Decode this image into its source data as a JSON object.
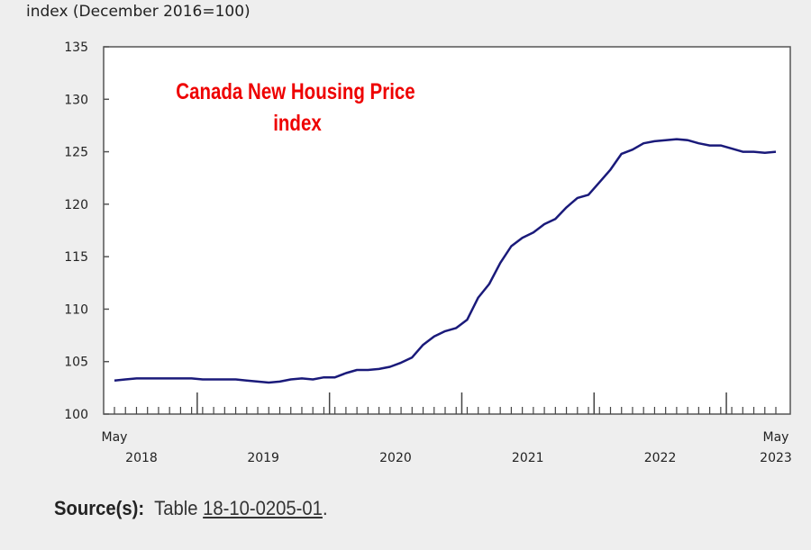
{
  "chart_data": {
    "type": "line",
    "title": "Canada New Housing Price index",
    "title_lines": [
      "Canada New Housing Price",
      "index"
    ],
    "ylabel": "index (December 2016=100)",
    "xlabel": "",
    "ylim": [
      100,
      135
    ],
    "yticks": [
      100,
      105,
      110,
      115,
      120,
      125,
      130,
      135
    ],
    "x_start": "May 2018",
    "x_end": "May 2023",
    "x_tick_labels": {
      "start_month": "May",
      "end_month": "May",
      "years": [
        "2018",
        "2019",
        "2020",
        "2021",
        "2022",
        "2023"
      ]
    },
    "first_month_index": 4,
    "grid": false,
    "series": [
      {
        "name": "Canada New Housing Price index",
        "color": "#1a1a7a",
        "values": [
          103.2,
          103.3,
          103.4,
          103.4,
          103.4,
          103.4,
          103.4,
          103.4,
          103.3,
          103.3,
          103.3,
          103.3,
          103.2,
          103.1,
          103.0,
          103.1,
          103.3,
          103.4,
          103.3,
          103.5,
          103.5,
          103.9,
          104.2,
          104.2,
          104.3,
          104.5,
          104.9,
          105.4,
          106.6,
          107.4,
          107.9,
          108.2,
          109.0,
          111.1,
          112.4,
          114.4,
          116.0,
          116.8,
          117.3,
          118.1,
          118.6,
          119.7,
          120.6,
          120.9,
          122.1,
          123.3,
          124.8,
          125.2,
          125.8,
          126.0,
          126.1,
          126.2,
          126.1,
          125.8,
          125.6,
          125.6,
          125.3,
          125.0,
          125.0,
          124.9,
          125.0
        ]
      }
    ],
    "title_color": "#ee0000"
  },
  "source": {
    "label": "Source(s):",
    "prefix": "Table",
    "link": "18-10-0205-01",
    "suffix": "."
  }
}
